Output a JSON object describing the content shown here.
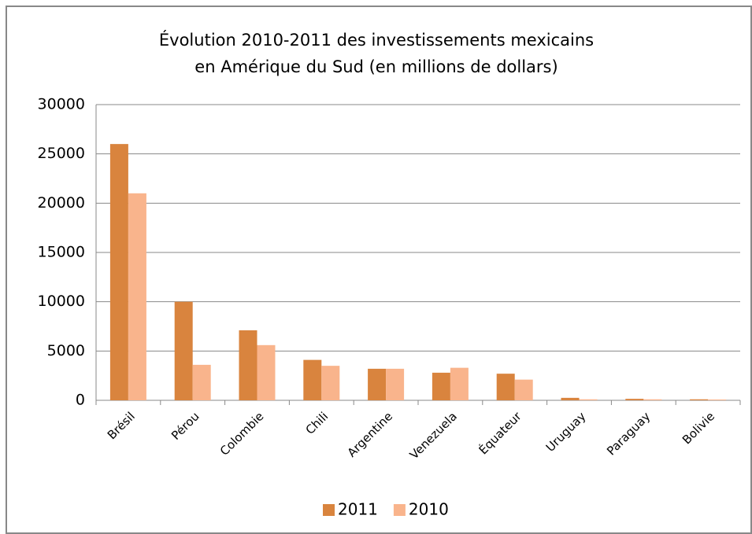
{
  "chart_data": {
    "type": "bar",
    "title": [
      "Évolution 2010-2011 des investissements mexicains",
      "en Amérique du Sud (en millions de dollars)"
    ],
    "categories": [
      "Brésil",
      "Pérou",
      "Colombie",
      "Chili",
      "Argentine",
      "Venezuela",
      "Équateur",
      "Uruguay",
      "Paraguay",
      "Bolivie"
    ],
    "series": [
      {
        "name": "2011",
        "color": "#d9843e",
        "values": [
          26000,
          10000,
          7100,
          4100,
          3200,
          2800,
          2700,
          250,
          150,
          100
        ]
      },
      {
        "name": "2010",
        "color": "#f9b48c",
        "values": [
          21000,
          3600,
          5600,
          3500,
          3200,
          3300,
          2100,
          100,
          100,
          80
        ]
      }
    ],
    "ylim": [
      0,
      30000
    ],
    "yticks": [
      0,
      5000,
      10000,
      15000,
      20000,
      25000,
      30000
    ],
    "grid": true,
    "legend": "bottom"
  }
}
